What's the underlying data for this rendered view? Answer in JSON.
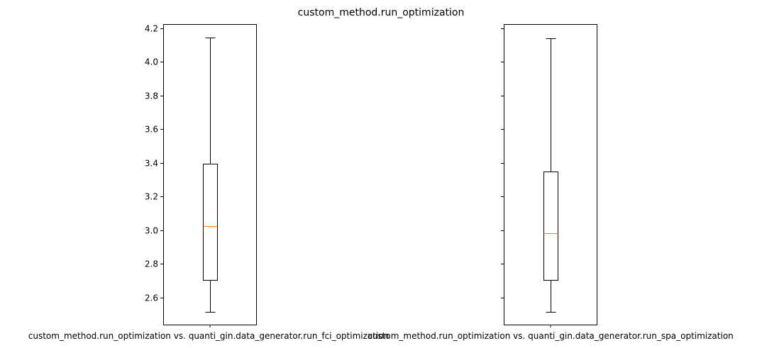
{
  "chart_data": {
    "type": "boxplot",
    "title": "custom_method.run_optimization",
    "ylim": [
      2.44,
      4.225
    ],
    "yticks": [
      2.6,
      2.8,
      3.0,
      3.2,
      3.4,
      3.6,
      3.8,
      4.0,
      4.2
    ],
    "shared_y": true,
    "grid": false,
    "median_color": "#ff7f0e",
    "box_color": "#000000",
    "panels": [
      {
        "xlabel": "custom_method.run_optimization vs. quanti_gin.data_generator.run_fci_optimization",
        "whisker_low": 2.515,
        "q1": 2.705,
        "median": 3.025,
        "q3": 3.395,
        "whisker_high": 4.145
      },
      {
        "xlabel": "custom_method.run_optimization vs. quanti_gin.data_generator.run_spa_optimization",
        "whisker_low": 2.515,
        "q1": 2.705,
        "median": 2.985,
        "q3": 3.35,
        "whisker_high": 4.14
      }
    ]
  }
}
